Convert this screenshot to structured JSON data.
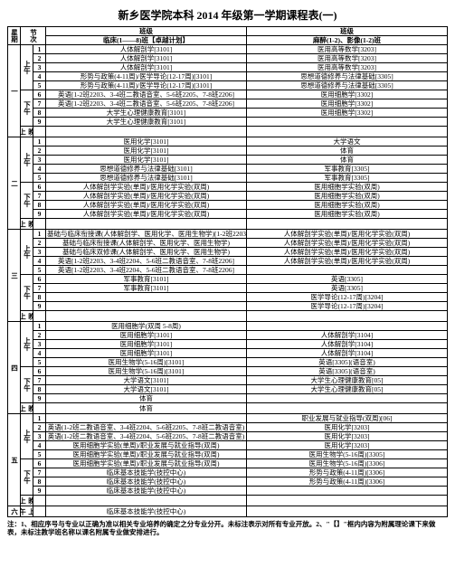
{
  "title": "新乡医学院本科 2014 年级第一学期课程表(一)",
  "header": {
    "day": "星期",
    "slot": "节次",
    "col1": "班级",
    "col2": "班级",
    "sub1": "临床(1——8)班【卓越计划】",
    "sub2": "麻醉(1-2)、影像(1-2)班"
  },
  "days": [
    {
      "name": "一",
      "blocks": [
        {
          "name": "上午",
          "rows": [
            {
              "n": "1",
              "c1": "人体解剖学[3101]",
              "c2": "医用高等数学[3203]"
            },
            {
              "n": "2",
              "c1": "人体解剖学[3101]",
              "c2": "医用高等数学[3203]"
            },
            {
              "n": "3",
              "c1": "人体解剖学[3101]",
              "c2": "医用高等数学[3203]"
            },
            {
              "n": "4",
              "c1": "形势与政策(4-11周)/医学导论(12-17周)[3101]",
              "c2": "思想道德修养与法律基础[3305]"
            },
            {
              "n": "5",
              "c1": "形势与政策(4-11周)/医学导论(12-17周)[3101]",
              "c2": "思想道德修养与法律基础[3305]"
            }
          ]
        },
        {
          "name": "下午",
          "rows": [
            {
              "n": "6",
              "c1": "英语[1-2班2203、3-4班二教语音室、5-6班2205、7-8班2206]",
              "c2": "医用细胞学[3302]"
            },
            {
              "n": "7",
              "c1": "英语[1-2班2203、3-4班二教语音室、5-6班2205、7-8班2206]",
              "c2": "医用细胞学[3302]"
            },
            {
              "n": "8",
              "c1": "大学生心理健康教育[3101]",
              "c2": "医用细胞学[3302]"
            },
            {
              "n": "9",
              "c1": "大学生心理健康教育[3101]",
              "c2": ""
            }
          ]
        },
        {
          "name": "晚上",
          "rows": [
            {
              "n": "",
              "c1": "",
              "c2": ""
            }
          ]
        }
      ]
    },
    {
      "name": "二",
      "blocks": [
        {
          "name": "上午",
          "rows": [
            {
              "n": "1",
              "c1": "医用化学[3101]",
              "c2": "大学语文"
            },
            {
              "n": "2",
              "c1": "医用化学[3101]",
              "c2": "体育"
            },
            {
              "n": "3",
              "c1": "医用化学[3101]",
              "c2": "体育"
            },
            {
              "n": "4",
              "c1": "思想道德修养与法律基础[3101]",
              "c2": "军事教育[3305]"
            },
            {
              "n": "5",
              "c1": "思想道德修养与法律基础[3101]",
              "c2": "军事教育[3305]"
            }
          ]
        },
        {
          "name": "下午",
          "rows": [
            {
              "n": "6",
              "c1": "人体解剖学实验(单周)/医用化学实验(双周)",
              "c2": "医用细胞学实验(双周)"
            },
            {
              "n": "7",
              "c1": "人体解剖学实验(单周)/医用化学实验(双周)",
              "c2": "医用细胞学实验(双周)"
            },
            {
              "n": "8",
              "c1": "人体解剖学实验(单周)/医用化学实验(双周)",
              "c2": "医用细胞学实验(双周)"
            },
            {
              "n": "9",
              "c1": "人体解剖学实验(单周)/医用化学实验(双周)",
              "c2": "医用细胞学实验(双周)"
            }
          ]
        },
        {
          "name": "晚上",
          "rows": [
            {
              "n": "",
              "c1": "",
              "c2": ""
            }
          ]
        }
      ]
    },
    {
      "name": "三",
      "blocks": [
        {
          "name": "上午",
          "rows": [
            {
              "n": "1",
              "c1": "基础与临床衔接课(人体解剖学、医用化学、医用生物学)[1-2班2203、3-4班2204、5-6班2205、7-8班2206]",
              "c2": "人体解剖学实验(单周)/医用化学实验(双周)"
            },
            {
              "n": "2",
              "c1": "基础与临床衔接课(人体解剖学、医用化学、医用生物学)",
              "c2": "人体解剖学实验(单周)/医用化学实验(双周)"
            },
            {
              "n": "3",
              "c1": "基础与临床双修课(人体解剖学、医用化学、医用生物学)",
              "c2": "人体解剖学实验(单周)/医用化学实验(双周)"
            },
            {
              "n": "4",
              "c1": "英语[1-2班2203、3-4班2204、5-6班二教语音室、7-8班2206]",
              "c2": "人体解剖学实验(单周)/医用化学实验(双周)"
            },
            {
              "n": "5",
              "c1": "英语[1-2班2203、3-4班2204、5-6班二教语音室、7-8班2206]",
              "c2": ""
            }
          ]
        },
        {
          "name": "下午",
          "rows": [
            {
              "n": "6",
              "c1": "军事教育[3101]",
              "c2": "英语[3305]"
            },
            {
              "n": "7",
              "c1": "军事教育[3101]",
              "c2": "英语[3305]"
            },
            {
              "n": "8",
              "c1": "",
              "c2": "医学导论(12-17周)[3204]"
            },
            {
              "n": "9",
              "c1": "",
              "c2": "医学导论(12-17周)[3204]"
            }
          ]
        },
        {
          "name": "晚上",
          "rows": [
            {
              "n": "",
              "c1": "",
              "c2": ""
            }
          ]
        }
      ]
    },
    {
      "name": "四",
      "blocks": [
        {
          "name": "上午",
          "rows": [
            {
              "n": "1",
              "c1": "医用细胞学(双周 5-8周)",
              "c2": ""
            },
            {
              "n": "2",
              "c1": "医用细胞学[3101]",
              "c2": "人体解剖学[3104]"
            },
            {
              "n": "3",
              "c1": "医用细胞学[3101]",
              "c2": "人体解剖学[3104]"
            },
            {
              "n": "4",
              "c1": "医用细胞学[3101]",
              "c2": "人体解剖学[3104]"
            },
            {
              "n": "5",
              "c1": "医用生物学(5-16周)[3101]",
              "c2": "英语[3305](语音室)"
            }
          ]
        },
        {
          "name": "下午",
          "rows": [
            {
              "n": "6",
              "c1": "医用生物学(5-16周)[3101]",
              "c2": "英语[3305](语音室)"
            },
            {
              "n": "7",
              "c1": "大学语文[3101]",
              "c2": "大学生心理健康教育[05]"
            },
            {
              "n": "8",
              "c1": "大学语文[3101]",
              "c2": "大学生心理健康教育[05]"
            },
            {
              "n": "9",
              "c1": "体育",
              "c2": ""
            }
          ]
        },
        {
          "name": "晚上",
          "rows": [
            {
              "n": "",
              "c1": "体育",
              "c2": ""
            }
          ]
        }
      ]
    },
    {
      "name": "五",
      "blocks": [
        {
          "name": "上午",
          "rows": [
            {
              "n": "1",
              "c1": "",
              "c2": "职业发展与就业指导(双周)[06]"
            },
            {
              "n": "2",
              "c1": "英语(1-2班二教语音室、3-4班2204、5-6班2205、7-8班二教语音室)",
              "c2": "医用化学[3203]"
            },
            {
              "n": "3",
              "c1": "英语(1-2班二教语音室、3-4班2204、5-6班2205、7-8班二教语音室)",
              "c2": "医用化学[3203]"
            },
            {
              "n": "4",
              "c1": "医用细胞学实验(单周)/职业发展与就业指导(双周)",
              "c2": "医用化学[3203]"
            },
            {
              "n": "5",
              "c1": "医用细胞学实验(单周)/职业发展与就业指导(双周)",
              "c2": "医用生物学(5-16周)[3305]"
            }
          ]
        },
        {
          "name": "下午",
          "rows": [
            {
              "n": "6",
              "c1": "医用细胞学实验(单周)/职业发展与就业指导(双周)",
              "c2": "医用生物学(5-16周)[3306]"
            },
            {
              "n": "7",
              "c1": "临床基本技能学(技控中心)",
              "c2": "形势与政策(4-11周)[3306]"
            },
            {
              "n": "8",
              "c1": "临床基本技能学(技控中心)",
              "c2": "形势与政策(4-11周)[3306]"
            },
            {
              "n": "9",
              "c1": "临床基本技能学(技控中心)",
              "c2": ""
            }
          ]
        },
        {
          "name": "晚上",
          "rows": [
            {
              "n": "",
              "c1": "",
              "c2": ""
            }
          ]
        }
      ]
    },
    {
      "name": "六",
      "blocks": [
        {
          "name": "上午",
          "rows": [
            {
              "n": "",
              "c1": "临床基本技能学(技控中心)",
              "c2": ""
            }
          ]
        }
      ]
    }
  ],
  "footnote": "注：1、相应序号与专业以正确为准以相关专业培养的确定之分专业分开。未标注表示对所有专业开放。2、\"【】\"框内内容为附属理论课下来做表，未标注教学班名称以课名附属专业做安排进行。"
}
